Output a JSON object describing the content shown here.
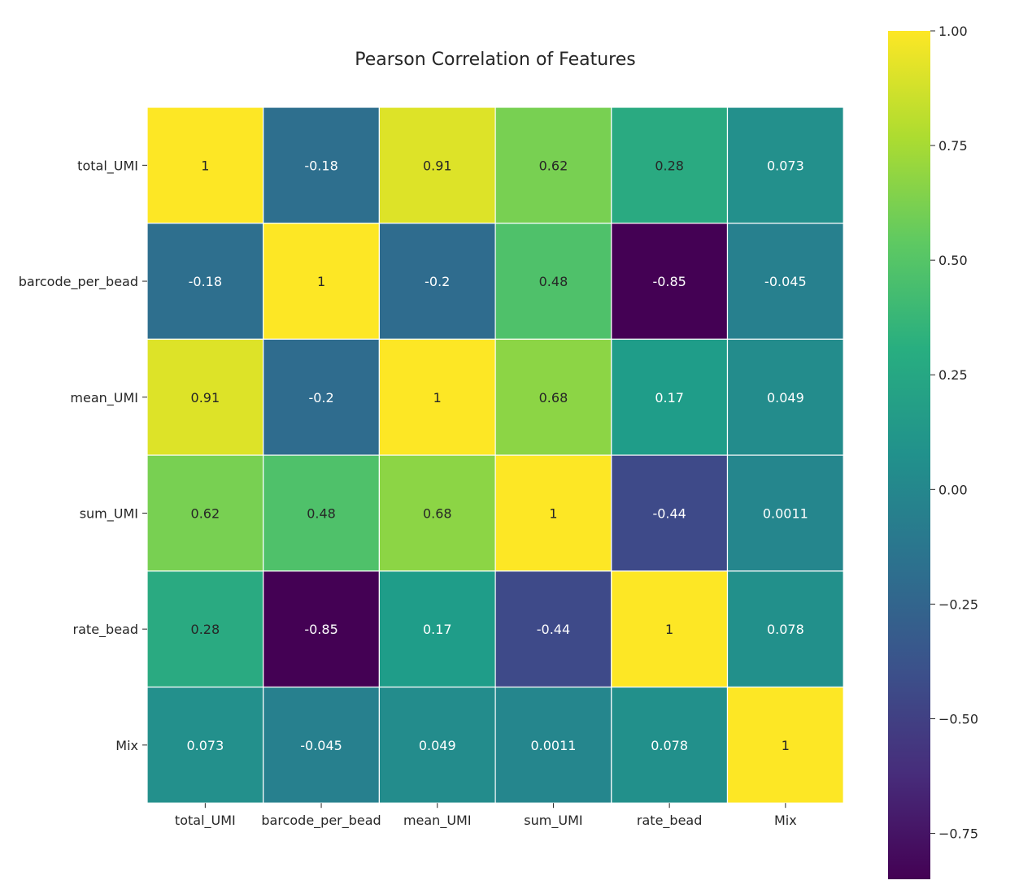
{
  "chart_data": {
    "type": "heatmap",
    "title": "Pearson Correlation of Features",
    "xlabel": "",
    "ylabel": "",
    "row_labels": [
      "total_UMI",
      "barcode_per_bead",
      "mean_UMI",
      "sum_UMI",
      "rate_bead",
      "Mix"
    ],
    "col_labels": [
      "total_UMI",
      "barcode_per_bead",
      "mean_UMI",
      "sum_UMI",
      "rate_bead",
      "Mix"
    ],
    "values": [
      [
        1,
        -0.18,
        0.91,
        0.62,
        0.28,
        0.073
      ],
      [
        -0.18,
        1,
        -0.2,
        0.48,
        -0.85,
        -0.045
      ],
      [
        0.91,
        -0.2,
        1,
        0.68,
        0.17,
        0.049
      ],
      [
        0.62,
        0.48,
        0.68,
        1,
        -0.44,
        0.0011
      ],
      [
        0.28,
        -0.85,
        0.17,
        -0.44,
        1,
        0.078
      ],
      [
        0.073,
        -0.045,
        0.049,
        0.0011,
        0.078,
        1
      ]
    ],
    "annotations": [
      [
        "1",
        "-0.18",
        "0.91",
        "0.62",
        "0.28",
        "0.073"
      ],
      [
        "-0.18",
        "1",
        "-0.2",
        "0.48",
        "-0.85",
        "-0.045"
      ],
      [
        "0.91",
        "-0.2",
        "1",
        "0.68",
        "0.17",
        "0.049"
      ],
      [
        "0.62",
        "0.48",
        "0.68",
        "1",
        "-0.44",
        "0.0011"
      ],
      [
        "0.28",
        "-0.85",
        "0.17",
        "-0.44",
        "1",
        "0.078"
      ],
      [
        "0.073",
        "-0.045",
        "0.049",
        "0.0011",
        "0.078",
        "1"
      ]
    ],
    "colormap": "viridis",
    "vmin": -0.85,
    "vmax": 1,
    "linecolor": "#ffffff",
    "colorbar": {
      "ticks": [
        1.0,
        0.75,
        0.5,
        0.25,
        0.0,
        -0.25,
        -0.5,
        -0.75
      ],
      "tick_labels": [
        "1.00",
        "0.75",
        "0.50",
        "0.25",
        "0.00",
        "−0.25",
        "−0.50",
        "−0.75"
      ]
    }
  }
}
